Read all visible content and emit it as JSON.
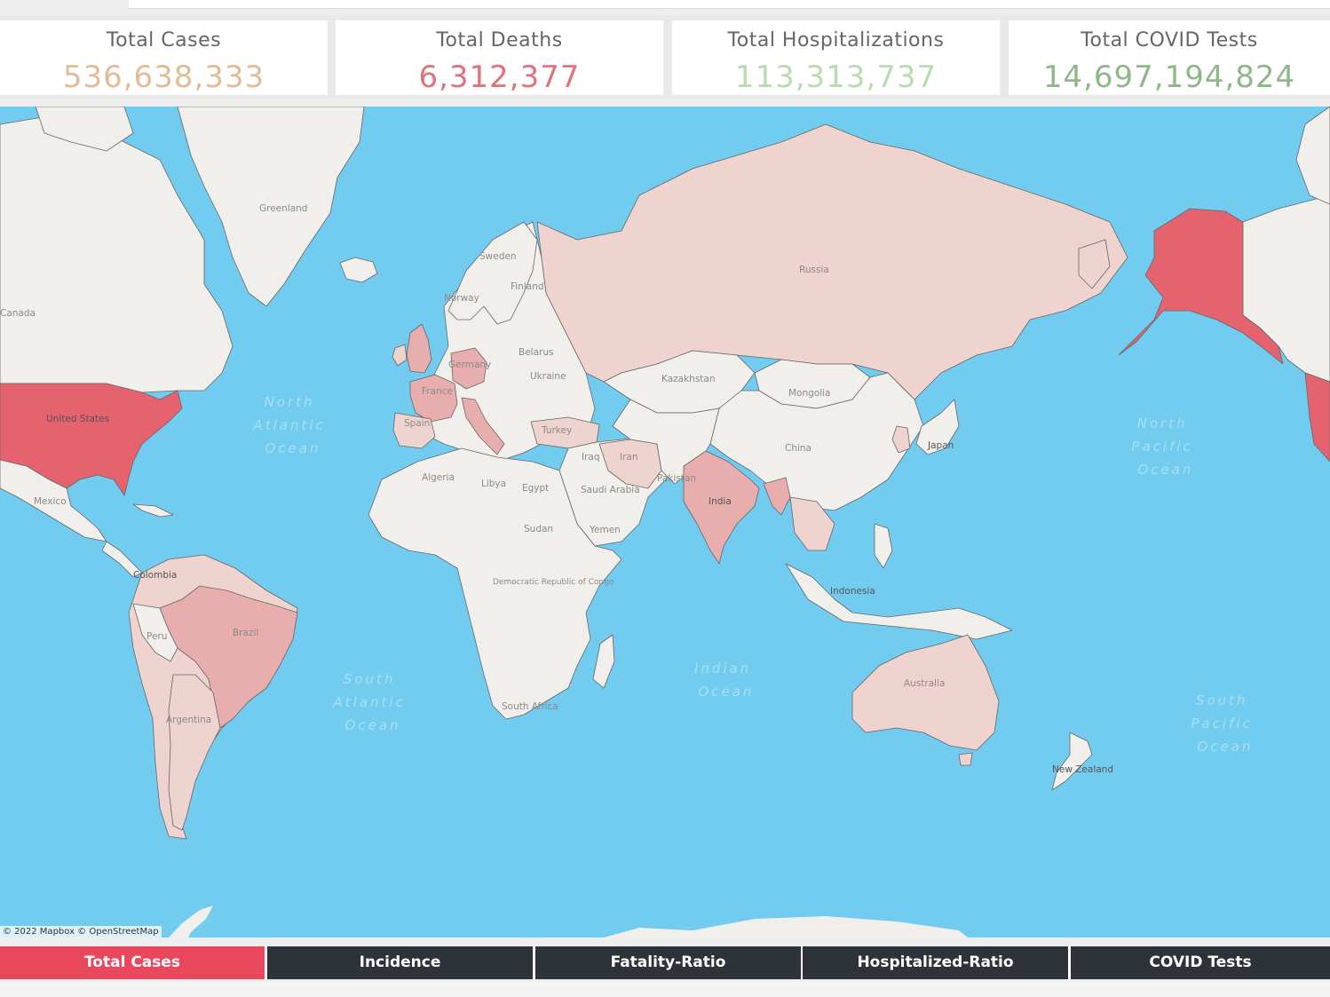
{
  "kpis": [
    {
      "title": "Total Cases",
      "value": "536,638,333",
      "color": "#e2bc97"
    },
    {
      "title": "Total Deaths",
      "value": "6,312,377",
      "color": "#e0727a"
    },
    {
      "title": "Total Hospitalizations",
      "value": "113,313,737",
      "color": "#b9dbb0"
    },
    {
      "title": "Total COVID Tests",
      "value": "14,697,194,824",
      "color": "#8fb889"
    }
  ],
  "map": {
    "colors": {
      "ocean": "#72ccef",
      "land_low": "#f1efec",
      "land_light": "#efd3cf",
      "land_mid": "#e8aeae",
      "land_high": "#e4636f",
      "border": "#5a5a5a"
    },
    "country_labels": {
      "greenland": "Greenland",
      "canada": "Canada",
      "united_states": "United States",
      "mexico": "Mexico",
      "colombia": "Colombia",
      "peru": "Peru",
      "brazil": "Brazil",
      "argentina": "Argentina",
      "sweden": "Sweden",
      "finland": "Finland",
      "norway": "Norway",
      "germany": "Germany",
      "belarus": "Belarus",
      "ukraine": "Ukraine",
      "france": "France",
      "spain": "Spain",
      "turkey": "Turkey",
      "russia": "Russia",
      "kazakhstan": "Kazakhstan",
      "mongolia": "Mongolia",
      "china": "China",
      "japan": "Japan",
      "iran": "Iran",
      "iraq": "Iraq",
      "pakistan": "Pakistan",
      "india": "India",
      "algeria": "Algeria",
      "libya": "Libya",
      "egypt": "Egypt",
      "saudi_arabia": "Saudi Arabia",
      "yemen": "Yemen",
      "sudan": "Sudan",
      "dr_congo": "Democratic Republic of Congo",
      "south_africa": "South Africa",
      "indonesia": "Indonesia",
      "australia": "Australia",
      "new_zealand": "New Zealand"
    },
    "ocean_labels": {
      "north_atlantic": [
        "North",
        "Atlantic",
        "Ocean"
      ],
      "south_atlantic": [
        "South",
        "Atlantic",
        "Ocean"
      ],
      "indian": [
        "Indian",
        "Ocean"
      ],
      "north_pacific": [
        "North",
        "Pacific",
        "Ocean"
      ],
      "south_pacific": [
        "South",
        "Pacific",
        "Ocean"
      ]
    },
    "attribution": "© 2022 Mapbox © OpenStreetMap"
  },
  "tabs": [
    {
      "label": "Total Cases",
      "active": true
    },
    {
      "label": "Incidence",
      "active": false
    },
    {
      "label": "Fatality-Ratio",
      "active": false
    },
    {
      "label": "Hospitalized-Ratio",
      "active": false
    },
    {
      "label": "COVID Tests",
      "active": false
    }
  ],
  "active_accent": "#e9485c",
  "tab_background": "#2d3339"
}
